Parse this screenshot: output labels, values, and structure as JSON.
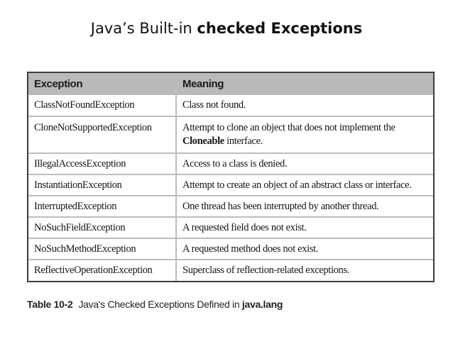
{
  "title": {
    "prefix": "Java’s Built-in ",
    "bold": "checked Exceptions"
  },
  "table": {
    "headers": [
      "Exception",
      "Meaning"
    ],
    "rows": [
      {
        "exception": "ClassNotFoundException",
        "meaning": "Class not found."
      },
      {
        "exception": "CloneNotSupportedException",
        "meaning_line1": "Attempt to clone an object that does not implement the",
        "meaning_bold": "Cloneable",
        "meaning_line2_rest": " interface."
      },
      {
        "exception": "IllegalAccessException",
        "meaning": "Access to a class is denied."
      },
      {
        "exception": "InstantiationException",
        "meaning": "Attempt to create an object of an abstract class or interface."
      },
      {
        "exception": "InterruptedException",
        "meaning": "One thread has been interrupted by another thread."
      },
      {
        "exception": "NoSuchFieldException",
        "meaning": "A requested field does not exist."
      },
      {
        "exception": "NoSuchMethodException",
        "meaning": "A requested method does not exist."
      },
      {
        "exception": "ReflectiveOperationException",
        "meaning": "Superclass of reflection-related exceptions."
      }
    ]
  },
  "caption": {
    "label": "Table 10-2",
    "text": "Java's Checked Exceptions Defined in ",
    "bold": "java.lang"
  }
}
